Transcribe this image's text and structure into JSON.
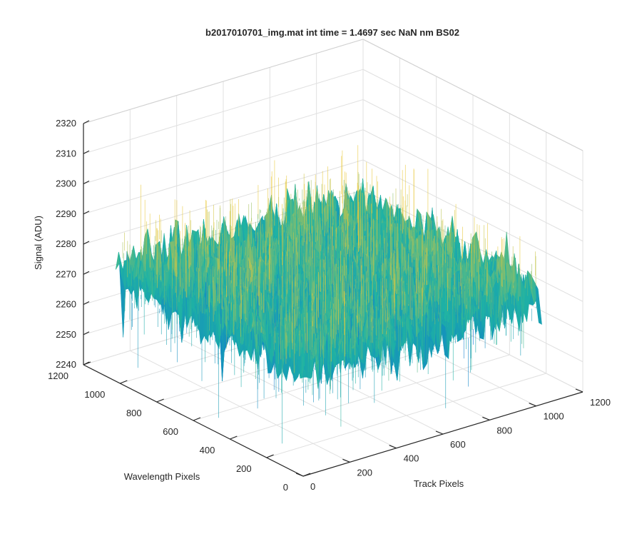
{
  "chart_data": {
    "type": "surface",
    "title": "b2017010701_img.mat int time = 1.4697 sec  NaN nm BS02",
    "xlabel": "Track Pixels",
    "ylabel": "Wavelength Pixels",
    "zlabel": "Signal (ADU)",
    "xlim": [
      0,
      1200
    ],
    "ylim": [
      0,
      1200
    ],
    "zlim": [
      2240,
      2320
    ],
    "x_ticks": [
      0,
      200,
      400,
      600,
      800,
      1000,
      1200
    ],
    "y_ticks": [
      0,
      200,
      400,
      600,
      800,
      1000,
      1200
    ],
    "z_ticks": [
      2240,
      2250,
      2260,
      2270,
      2280,
      2290,
      2300,
      2310,
      2320
    ],
    "x_tick_labels": [
      "0",
      "200",
      "400",
      "600",
      "800",
      "1000",
      "1200"
    ],
    "y_tick_labels": [
      "0",
      "200",
      "400",
      "600",
      "800",
      "1000",
      "1200"
    ],
    "z_tick_labels": [
      "2240",
      "2250",
      "2260",
      "2270",
      "2280",
      "2290",
      "2300",
      "2310",
      "2320"
    ],
    "surface": {
      "x_extent": [
        0,
        1024
      ],
      "y_extent": [
        0,
        1024
      ],
      "mean_signal": 2276,
      "typical_range": [
        2262,
        2292
      ],
      "min_signal": 2245,
      "max_signal": 2315,
      "colormap": "parula"
    },
    "grid": true,
    "box": true
  },
  "colors": {
    "surface_low": "#0a6fd8",
    "surface_mid": "#1fb3a3",
    "surface_high": "#e8c83a",
    "axis": "#262626",
    "grid": "#e0e0e0"
  }
}
